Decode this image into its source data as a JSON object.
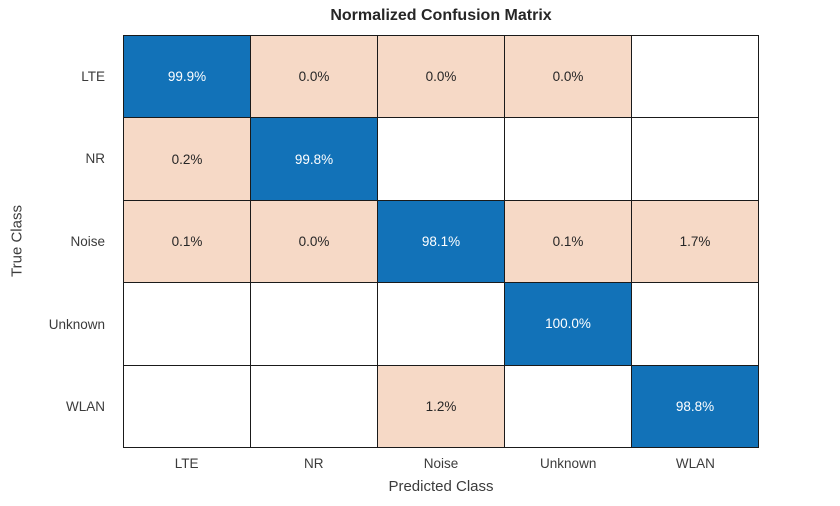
{
  "chart_data": {
    "type": "heatmap",
    "subtype": "confusion-matrix",
    "title": "Normalized Confusion Matrix",
    "xlabel": "Predicted Class",
    "ylabel": "True Class",
    "x_categories": [
      "LTE",
      "NR",
      "Noise",
      "Unknown",
      "WLAN"
    ],
    "y_categories": [
      "LTE",
      "NR",
      "Noise",
      "Unknown",
      "WLAN"
    ],
    "cell_labels": [
      [
        "99.9%",
        "0.0%",
        "0.0%",
        "0.0%",
        ""
      ],
      [
        "0.2%",
        "99.8%",
        "",
        "",
        ""
      ],
      [
        "0.1%",
        "0.0%",
        "98.1%",
        "0.1%",
        "1.7%"
      ],
      [
        "",
        "",
        "",
        "100.0%",
        ""
      ],
      [
        "",
        "",
        "1.2%",
        "",
        "98.8%"
      ]
    ],
    "values_percent": [
      [
        99.9,
        0.0,
        0.0,
        0.0,
        null
      ],
      [
        0.2,
        99.8,
        null,
        null,
        null
      ],
      [
        0.1,
        0.0,
        98.1,
        0.1,
        1.7
      ],
      [
        null,
        null,
        null,
        100.0,
        null
      ],
      [
        null,
        null,
        1.2,
        null,
        98.8
      ]
    ],
    "legend": "none",
    "grid": "on"
  },
  "colors": {
    "diagonal_fill": "#1272b8",
    "off_diagonal_fill": "#f6d9c6",
    "empty_fill": "#ffffff",
    "grid_line": "#1a1a1a",
    "title_text": "#262626",
    "axis_text": "#3b3b3b",
    "cell_text_dark": "#262626",
    "cell_text_light": "#ffffff"
  }
}
